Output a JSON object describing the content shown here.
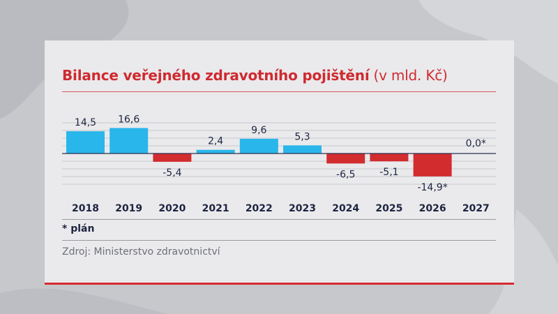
{
  "chart_data": {
    "type": "bar",
    "title": "Bilance veřejného zdravotního pojištění",
    "unit_label": "(v mld. Kč)",
    "categories": [
      "2018",
      "2019",
      "2020",
      "2021",
      "2022",
      "2023",
      "2024",
      "2025",
      "2026",
      "2027"
    ],
    "values": [
      14.5,
      16.6,
      -5.4,
      2.4,
      9.6,
      5.3,
      -6.5,
      -5.1,
      -14.9,
      0.0
    ],
    "value_labels": [
      "14,5",
      "16,6",
      "-5,4",
      "2,4",
      "9,6",
      "5,3",
      "-6,5",
      "-5,1",
      "-14,9*",
      "0,0*"
    ],
    "ylim": [
      -20,
      20
    ],
    "grid": true,
    "colors": {
      "positive": "#29b6ea",
      "negative": "#d32c2e"
    },
    "footnote": "* plán",
    "source": "Zdroj: Ministerstvo zdravotnictví"
  },
  "colors": {
    "title": "#cf2a30",
    "accent": "#d62a2f",
    "text": "#1d2440"
  }
}
